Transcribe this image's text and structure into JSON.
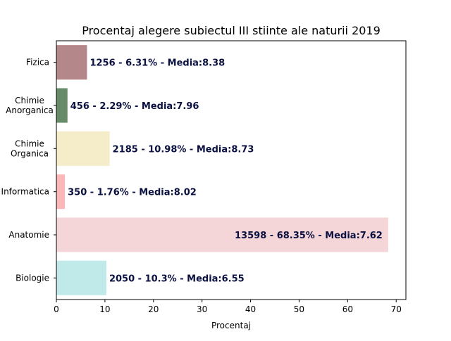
{
  "chart_data": {
    "type": "bar",
    "orientation": "horizontal",
    "title": "Procentaj alegere subiectul III stiinte ale naturii 2019",
    "xlabel": "Procentaj",
    "ylabel": "",
    "xlim": [
      0,
      72
    ],
    "xticks": [
      0,
      10,
      20,
      30,
      40,
      50,
      60,
      70
    ],
    "grid": false,
    "legend": "none",
    "categories": [
      [
        "Fizica"
      ],
      [
        "Chimie",
        "Anorganica"
      ],
      [
        "Chimie",
        "Organica"
      ],
      [
        "Informatica"
      ],
      [
        "Anatomie"
      ],
      [
        "Biologie"
      ]
    ],
    "values": [
      6.31,
      2.29,
      10.98,
      1.76,
      68.35,
      10.3
    ],
    "colors": [
      "#b4888b",
      "#678a68",
      "#f5ecc9",
      "#fdb7b9",
      "#f5d6d8",
      "#c0e9ea"
    ],
    "data_labels": [
      "1256 - 6.31% - Media:8.38",
      "456 - 2.29% - Media:7.96",
      "2185 - 10.98% - Media:8.73",
      "350 - 1.76% - Media:8.02",
      "13598 - 68.35% - Media:7.62",
      "2050 - 10.3% - Media:6.55"
    ],
    "data_label_inside": [
      false,
      false,
      false,
      false,
      true,
      false
    ]
  }
}
